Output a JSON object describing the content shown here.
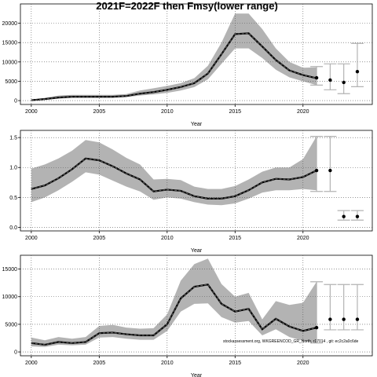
{
  "title": "2021F=2022F then Fmsy(lower range)",
  "footnote": "stockassessment.org, WKGREENCOD_GR_North, r17014 , git: ec2c2a0c6de",
  "colors": {
    "band": "#b3b3b3",
    "line": "#000000",
    "median": "#555555",
    "bar": "#b3b3b3",
    "grid": "#555555"
  },
  "chart_data": [
    {
      "type": "line",
      "name": "recruitment",
      "xlabel": "Year",
      "ylabel": "",
      "xlim": [
        1999.2,
        2025.1
      ],
      "ylim": [
        -1000,
        25000
      ],
      "xticks": [
        2000,
        2005,
        2010,
        2015,
        2020
      ],
      "yticks": [
        0,
        5000,
        10000,
        15000,
        20000
      ],
      "ytick_labels": [
        "0",
        "5000",
        "10000",
        "15000",
        "20000"
      ],
      "grid": true,
      "x": [
        2000,
        2001,
        2002,
        2003,
        2004,
        2005,
        2006,
        2007,
        2008,
        2009,
        2010,
        2011,
        2012,
        2013,
        2014,
        2015,
        2016,
        2017,
        2018,
        2019,
        2020,
        2021
      ],
      "estimate": [
        100,
        400,
        800,
        1000,
        1000,
        1000,
        1000,
        1200,
        1800,
        2200,
        2800,
        3500,
        4500,
        7000,
        12000,
        17200,
        17400,
        14000,
        10500,
        7800,
        6600,
        5800
      ],
      "lower": [
        0,
        200,
        500,
        700,
        700,
        700,
        700,
        900,
        1300,
        1600,
        2000,
        2600,
        3500,
        5500,
        9500,
        13500,
        13500,
        11000,
        8000,
        6000,
        5000,
        4000
      ],
      "upper": [
        300,
        700,
        1300,
        1500,
        1500,
        1500,
        1500,
        1700,
        2600,
        3200,
        3800,
        4500,
        5800,
        9000,
        15000,
        22500,
        22500,
        18500,
        13500,
        10000,
        8500,
        8600
      ],
      "forecast": [
        {
          "x": 2021,
          "median": 5900,
          "lower": 4000,
          "upper": 8800
        },
        {
          "x": 2022,
          "median": 5300,
          "lower": 2800,
          "upper": 9500
        },
        {
          "x": 2023,
          "median": 4700,
          "lower": 1800,
          "upper": 9500
        },
        {
          "x": 2024,
          "median": 7500,
          "lower": 3600,
          "upper": 14800
        }
      ]
    },
    {
      "type": "line",
      "name": "fishing-mortality",
      "xlabel": "Year",
      "ylabel": "",
      "xlim": [
        1999.2,
        2025.1
      ],
      "ylim": [
        -0.06,
        1.62
      ],
      "xticks": [
        2000,
        2005,
        2010,
        2015,
        2020
      ],
      "yticks": [
        0.0,
        0.5,
        1.0,
        1.5
      ],
      "ytick_labels": [
        "0.0",
        "0.5",
        "1.0",
        "1.5"
      ],
      "grid": true,
      "x": [
        2000,
        2001,
        2002,
        2003,
        2004,
        2005,
        2006,
        2007,
        2008,
        2009,
        2010,
        2011,
        2012,
        2013,
        2014,
        2015,
        2016,
        2017,
        2018,
        2019,
        2020,
        2021
      ],
      "estimate": [
        0.64,
        0.7,
        0.82,
        0.97,
        1.15,
        1.12,
        1.02,
        0.9,
        0.8,
        0.6,
        0.63,
        0.61,
        0.52,
        0.48,
        0.48,
        0.52,
        0.62,
        0.75,
        0.81,
        0.8,
        0.84,
        0.95
      ],
      "lower": [
        0.42,
        0.5,
        0.62,
        0.76,
        0.92,
        0.88,
        0.78,
        0.68,
        0.6,
        0.46,
        0.5,
        0.48,
        0.42,
        0.38,
        0.37,
        0.4,
        0.48,
        0.58,
        0.62,
        0.62,
        0.64,
        0.62
      ],
      "upper": [
        0.98,
        1.05,
        1.15,
        1.28,
        1.46,
        1.42,
        1.3,
        1.16,
        1.05,
        0.8,
        0.81,
        0.79,
        0.68,
        0.64,
        0.64,
        0.69,
        0.8,
        0.93,
        1.0,
        1.0,
        1.14,
        1.52
      ],
      "forecast": [
        {
          "x": 2021,
          "median": 0.95,
          "lower": 0.6,
          "upper": 1.52
        },
        {
          "x": 2022,
          "median": 0.95,
          "lower": 0.6,
          "upper": 1.52
        },
        {
          "x": 2023,
          "median": 0.18,
          "lower": 0.12,
          "upper": 0.28
        },
        {
          "x": 2024,
          "median": 0.18,
          "lower": 0.12,
          "upper": 0.28
        }
      ]
    },
    {
      "type": "line",
      "name": "catch",
      "xlabel": "Year",
      "ylabel": "",
      "xlim": [
        1999.2,
        2025.1
      ],
      "ylim": [
        -700,
        17500
      ],
      "xticks": [
        2000,
        2005,
        2010,
        2015,
        2020
      ],
      "yticks": [
        0,
        5000,
        10000,
        15000
      ],
      "ytick_labels": [
        "0",
        "5000",
        "10000",
        "15000"
      ],
      "grid": true,
      "x": [
        2000,
        2001,
        2002,
        2003,
        2004,
        2005,
        2006,
        2007,
        2008,
        2009,
        2010,
        2011,
        2012,
        2013,
        2014,
        2015,
        2016,
        2017,
        2018,
        2019,
        2020,
        2021
      ],
      "estimate": [
        1600,
        1300,
        1800,
        1600,
        1800,
        3400,
        3500,
        3200,
        3000,
        3000,
        5000,
        9700,
        11800,
        12200,
        8700,
        7300,
        7800,
        4100,
        6000,
        4600,
        3800,
        4400
      ],
      "lower": [
        1000,
        900,
        1300,
        1200,
        1300,
        2600,
        2700,
        2400,
        2200,
        2200,
        3800,
        7300,
        8700,
        8800,
        6300,
        5300,
        5600,
        3000,
        4100,
        2700,
        2000,
        1600
      ],
      "upper": [
        2600,
        2100,
        2700,
        2400,
        2700,
        4700,
        4900,
        4400,
        4200,
        4300,
        6800,
        12900,
        15900,
        16900,
        12300,
        10000,
        10700,
        5900,
        9200,
        8500,
        8900,
        12700
      ],
      "forecast": [
        {
          "x": 2021,
          "median": 4400,
          "lower": 1600,
          "upper": 12700
        },
        {
          "x": 2022,
          "median": 5900,
          "lower": 4000,
          "upper": 12200
        },
        {
          "x": 2023,
          "median": 5900,
          "lower": 4000,
          "upper": 12200
        },
        {
          "x": 2024,
          "median": 5900,
          "lower": 4000,
          "upper": 12200
        }
      ]
    }
  ]
}
